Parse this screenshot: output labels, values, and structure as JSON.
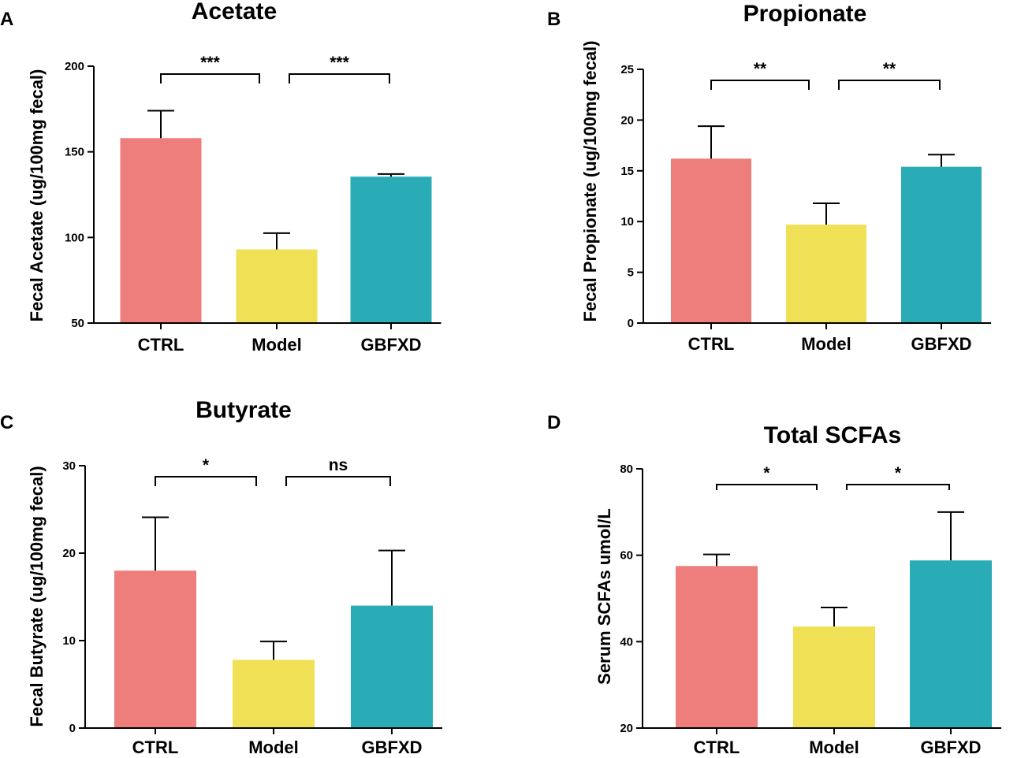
{
  "colors": {
    "CTRL": "#ed7e7b",
    "Model": "#f0e055",
    "GBFXD": "#2aacb6",
    "axis": "#000000"
  },
  "chart_data": [
    {
      "panel": "A",
      "type": "bar",
      "title": "Acetate",
      "ylabel": "Fecal Acetate (ug/100mg fecal)",
      "xlabel": "",
      "categories": [
        "CTRL",
        "Model",
        "GBFXD"
      ],
      "values": [
        158,
        93,
        135.5
      ],
      "errors": [
        16,
        9.5,
        1.5
      ],
      "ylim": [
        50,
        200
      ],
      "yticks": [
        50,
        100,
        150,
        200
      ],
      "ytick_labels": [
        "50",
        "100",
        "150",
        "200"
      ],
      "comparisons": [
        {
          "from": 0,
          "to": 1,
          "label": "***"
        },
        {
          "from": 1,
          "to": 2,
          "label": "***"
        }
      ]
    },
    {
      "panel": "B",
      "type": "bar",
      "title": "Propionate",
      "ylabel": "Fecal Propionate (ug/100mg fecal)",
      "xlabel": "",
      "categories": [
        "CTRL",
        "Model",
        "GBFXD"
      ],
      "values": [
        16.2,
        9.7,
        15.4
      ],
      "errors": [
        3.2,
        2.1,
        1.2
      ],
      "ylim": [
        0,
        25
      ],
      "yticks": [
        0,
        5,
        10,
        15,
        20,
        25
      ],
      "ytick_labels": [
        "0",
        "5",
        "10",
        "15",
        "20",
        "25"
      ],
      "comparisons": [
        {
          "from": 0,
          "to": 1,
          "label": "**"
        },
        {
          "from": 1,
          "to": 2,
          "label": "**"
        }
      ]
    },
    {
      "panel": "C",
      "type": "bar",
      "title": "Butyrate",
      "ylabel": "Fecal Butyrate (ug/100mg fecal)",
      "xlabel": "",
      "categories": [
        "CTRL",
        "Model",
        "GBFXD"
      ],
      "values": [
        18,
        7.8,
        14
      ],
      "errors": [
        6.1,
        2.1,
        6.3
      ],
      "ylim": [
        0,
        30
      ],
      "yticks": [
        0,
        10,
        20,
        30
      ],
      "ytick_labels": [
        "0",
        "10",
        "20",
        "30"
      ],
      "comparisons": [
        {
          "from": 0,
          "to": 1,
          "label": "*"
        },
        {
          "from": 1,
          "to": 2,
          "label": "ns"
        }
      ]
    },
    {
      "panel": "D",
      "type": "bar",
      "title": "Total SCFAs",
      "ylabel": "Serum SCFAs umol/L",
      "xlabel": "",
      "categories": [
        "CTRL",
        "Model",
        "GBFXD"
      ],
      "values": [
        57.5,
        43.5,
        58.8
      ],
      "errors": [
        2.7,
        4.4,
        11.2
      ],
      "ylim": [
        20,
        80
      ],
      "yticks": [
        20,
        40,
        60,
        80
      ],
      "ytick_labels": [
        "20",
        "40",
        "60",
        "80"
      ],
      "comparisons": [
        {
          "from": 0,
          "to": 1,
          "label": "*"
        },
        {
          "from": 1,
          "to": 2,
          "label": "*"
        }
      ]
    }
  ]
}
